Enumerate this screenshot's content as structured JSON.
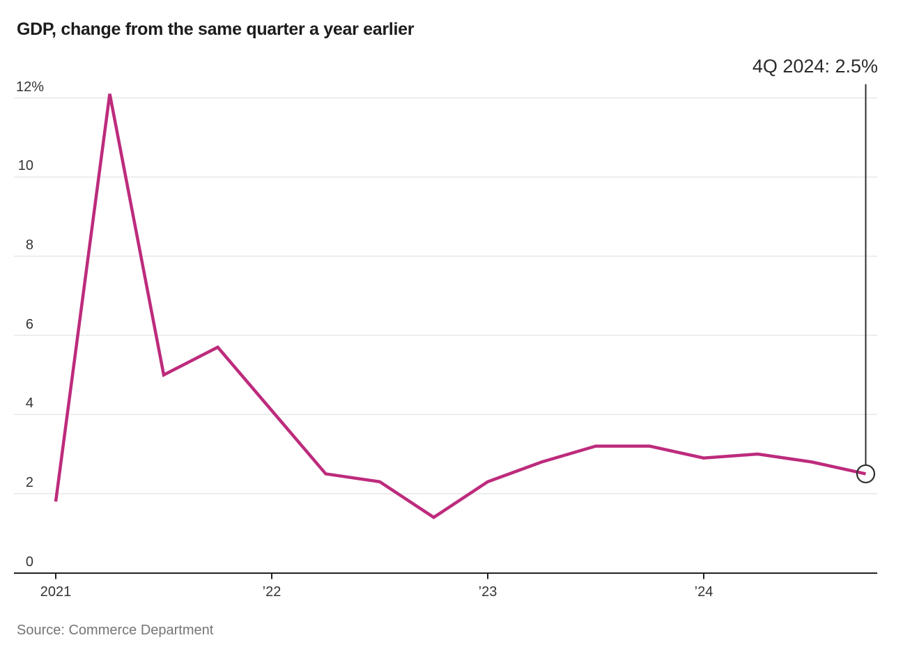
{
  "title": "GDP, change from the same quarter a year earlier",
  "annotation": {
    "label": "4Q 2024: 2.5%"
  },
  "source": "Source: Commerce Department",
  "colors": {
    "line": "#bd2b7c",
    "grid": "#e7e7e7",
    "axis": "#222222",
    "annotation_line": "#2e2e2e",
    "tick_text": "#333333",
    "source_text": "#757575"
  },
  "chart_data": {
    "type": "line",
    "title": "GDP, change from the same quarter a year earlier",
    "x": [
      "1Q 2021",
      "2Q 2021",
      "3Q 2021",
      "4Q 2021",
      "1Q 2022",
      "2Q 2022",
      "3Q 2022",
      "4Q 2022",
      "1Q 2023",
      "2Q 2023",
      "3Q 2023",
      "4Q 2023",
      "1Q 2024",
      "2Q 2024",
      "3Q 2024",
      "4Q 2024"
    ],
    "series": [
      {
        "name": "GDP, change from the same quarter a year earlier (%)",
        "values": [
          1.8,
          12.1,
          5.0,
          5.7,
          4.1,
          2.5,
          2.3,
          1.4,
          2.3,
          2.8,
          3.2,
          3.2,
          2.9,
          3.0,
          2.8,
          2.5
        ]
      }
    ],
    "xlabel": "",
    "ylabel": "",
    "ylim": [
      0,
      12.6
    ],
    "y_ticks": [
      0,
      2,
      4,
      6,
      8,
      10,
      12
    ],
    "y_tick_labels": [
      "0",
      "2",
      "4",
      "6",
      "8",
      "10",
      "12%"
    ],
    "x_tick_indices": [
      0,
      4,
      8,
      12
    ],
    "x_tick_labels": [
      "2021",
      "’22",
      "’23",
      "’24"
    ],
    "grid": "horizontal",
    "legend": "none",
    "annotation": {
      "index": 15,
      "label": "4Q 2024: 2.5%",
      "marker": "open-circle"
    }
  }
}
